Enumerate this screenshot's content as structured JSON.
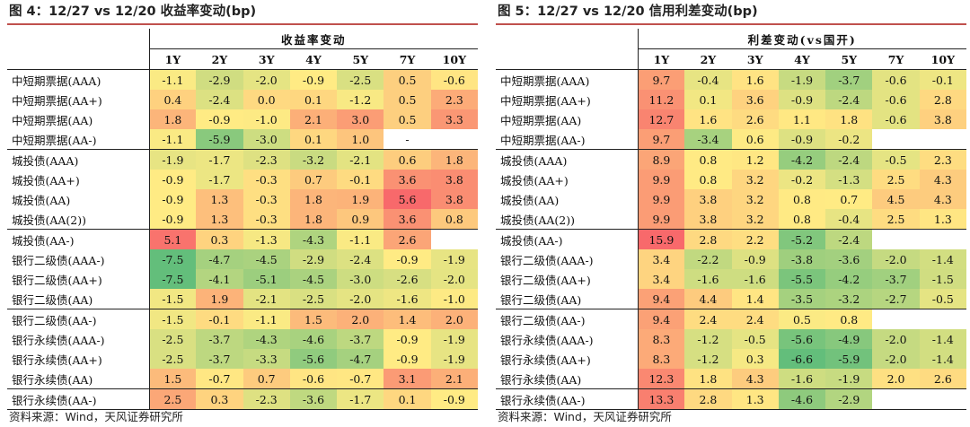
{
  "left": {
    "title": "图 4：12/27 vs 12/20 收益率变动(bp)",
    "header": "收益率变动",
    "columns": [
      "1Y",
      "2Y",
      "3Y",
      "4Y",
      "5Y",
      "7Y",
      "10Y"
    ],
    "rows": [
      {
        "name": "中短期票据(AAA)",
        "values": [
          "-1.1",
          "-2.9",
          "-2.0",
          "-0.9",
          "-2.5",
          "0.5",
          "-0.6"
        ]
      },
      {
        "name": "中短期票据(AA+)",
        "values": [
          "0.4",
          "-2.4",
          "0.0",
          "0.1",
          "-1.2",
          "0.5",
          "2.3"
        ]
      },
      {
        "name": "中短期票据(AA)",
        "values": [
          "1.8",
          "-0.9",
          "-1.0",
          "2.1",
          "3.0",
          "0.5",
          "3.3"
        ]
      },
      {
        "name": "中短期票据(AA-)",
        "values": [
          "-1.1",
          "-5.9",
          "-3.0",
          "0.1",
          "1.0",
          "-",
          ""
        ]
      },
      {
        "name": "城投债(AAA)",
        "values": [
          "-1.9",
          "-1.7",
          "-2.3",
          "-3.2",
          "-2.1",
          "0.6",
          "1.8"
        ]
      },
      {
        "name": "城投债(AA+)",
        "values": [
          "-0.9",
          "-1.7",
          "-0.3",
          "0.7",
          "-0.1",
          "3.6",
          "3.8"
        ]
      },
      {
        "name": "城投债(AA)",
        "values": [
          "-0.9",
          "1.3",
          "-0.3",
          "1.8",
          "1.9",
          "5.6",
          "3.8"
        ]
      },
      {
        "name": "城投债(AA(2))",
        "values": [
          "-0.9",
          "1.3",
          "-0.3",
          "1.8",
          "0.9",
          "3.6",
          "0.8"
        ]
      },
      {
        "name": "城投债(AA-)",
        "values": [
          "5.1",
          "0.3",
          "-1.3",
          "-4.3",
          "-1.1",
          "2.6",
          ""
        ]
      },
      {
        "name": "银行二级债(AAA-)",
        "values": [
          "-7.5",
          "-4.7",
          "-4.5",
          "-2.9",
          "-2.4",
          "-0.9",
          "-1.9"
        ]
      },
      {
        "name": "银行二级债(AA+)",
        "values": [
          "-7.5",
          "-4.1",
          "-5.1",
          "-4.5",
          "-3.0",
          "-2.6",
          "-2.0"
        ]
      },
      {
        "name": "银行二级债(AA)",
        "values": [
          "-1.5",
          "1.9",
          "-2.1",
          "-2.5",
          "-2.0",
          "-1.6",
          "-1.0"
        ]
      },
      {
        "name": "银行二级债(AA-)",
        "values": [
          "-1.5",
          "-0.1",
          "-1.1",
          "1.5",
          "2.0",
          "1.4",
          "2.0"
        ]
      },
      {
        "name": "银行永续债(AAA-)",
        "values": [
          "-2.5",
          "-3.7",
          "-4.3",
          "-4.6",
          "-3.7",
          "-0.9",
          "-1.9"
        ]
      },
      {
        "name": "银行永续债(AA+)",
        "values": [
          "-2.5",
          "-3.7",
          "-3.3",
          "-5.6",
          "-4.7",
          "-0.9",
          "-1.9"
        ]
      },
      {
        "name": "银行永续债(AA)",
        "values": [
          "1.5",
          "-0.7",
          "0.7",
          "-0.6",
          "-0.7",
          "3.1",
          "2.1"
        ]
      },
      {
        "name": "银行永续债(AA-)",
        "values": [
          "2.5",
          "0.3",
          "-2.3",
          "-3.6",
          "-1.7",
          "0.1",
          "-0.9"
        ]
      }
    ],
    "source": "资料来源：Wind，天风证券研究所"
  },
  "right": {
    "title": "图 5：12/27 vs 12/20 信用利差变动(bp)",
    "header": "利差变动(vs国开)",
    "columns": [
      "1Y",
      "2Y",
      "3Y",
      "4Y",
      "5Y",
      "7Y",
      "10Y"
    ],
    "rows": [
      {
        "name": "中短期票据(AAA)",
        "values": [
          "9.7",
          "-0.4",
          "1.6",
          "-1.9",
          "-3.7",
          "-0.6",
          "-0.1"
        ]
      },
      {
        "name": "中短期票据(AA+)",
        "values": [
          "11.2",
          "0.1",
          "3.6",
          "-0.9",
          "-2.4",
          "-0.6",
          "2.8"
        ]
      },
      {
        "name": "中短期票据(AA)",
        "values": [
          "12.7",
          "1.6",
          "2.6",
          "1.1",
          "1.8",
          "-0.6",
          "3.8"
        ]
      },
      {
        "name": "中短期票据(AA-)",
        "values": [
          "9.7",
          "-3.4",
          "0.6",
          "-0.9",
          "-0.2",
          "",
          ""
        ]
      },
      {
        "name": "城投债(AAA)",
        "values": [
          "8.9",
          "0.8",
          "1.2",
          "-4.2",
          "-2.4",
          "-0.5",
          "2.3"
        ]
      },
      {
        "name": "城投债(AA+)",
        "values": [
          "9.9",
          "0.8",
          "3.2",
          "-0.2",
          "-1.3",
          "2.5",
          "4.3"
        ]
      },
      {
        "name": "城投债(AA)",
        "values": [
          "9.9",
          "3.8",
          "3.2",
          "0.8",
          "0.7",
          "4.5",
          "4.3"
        ]
      },
      {
        "name": "城投债(AA(2))",
        "values": [
          "9.9",
          "3.8",
          "3.2",
          "0.8",
          "-0.4",
          "2.5",
          "1.3"
        ]
      },
      {
        "name": "城投债(AA-)",
        "values": [
          "15.9",
          "2.8",
          "2.2",
          "-5.2",
          "-2.4",
          "",
          ""
        ]
      },
      {
        "name": "银行二级债(AAA-)",
        "values": [
          "3.4",
          "-2.2",
          "-0.9",
          "-3.8",
          "-3.6",
          "-2.0",
          "-1.4"
        ]
      },
      {
        "name": "银行二级债(AA+)",
        "values": [
          "3.4",
          "-1.6",
          "-1.6",
          "-5.5",
          "-4.2",
          "-3.7",
          "-1.5"
        ]
      },
      {
        "name": "银行二级债(AA)",
        "values": [
          "9.4",
          "4.4",
          "1.4",
          "-3.5",
          "-3.2",
          "-2.7",
          "-0.5"
        ]
      },
      {
        "name": "银行二级债(AA-)",
        "values": [
          "9.4",
          "2.4",
          "2.4",
          "0.5",
          "0.8",
          "",
          ""
        ]
      },
      {
        "name": "银行永续债(AAA-)",
        "values": [
          "8.3",
          "-1.2",
          "-0.5",
          "-5.6",
          "-4.9",
          "-2.0",
          "-1.4"
        ]
      },
      {
        "name": "银行永续债(AA+)",
        "values": [
          "8.3",
          "-1.2",
          "0.3",
          "-6.6",
          "-5.9",
          "-2.0",
          "-1.4"
        ]
      },
      {
        "name": "银行永续债(AA)",
        "values": [
          "12.3",
          "1.8",
          "4.3",
          "-1.6",
          "-1.9",
          "2.0",
          "2.6"
        ]
      },
      {
        "name": "银行永续债(AA-)",
        "values": [
          "13.3",
          "2.8",
          "1.3",
          "-4.6",
          "-2.9",
          "",
          ""
        ]
      }
    ],
    "source": "资料来源：Wind，天风证券研究所"
  }
}
